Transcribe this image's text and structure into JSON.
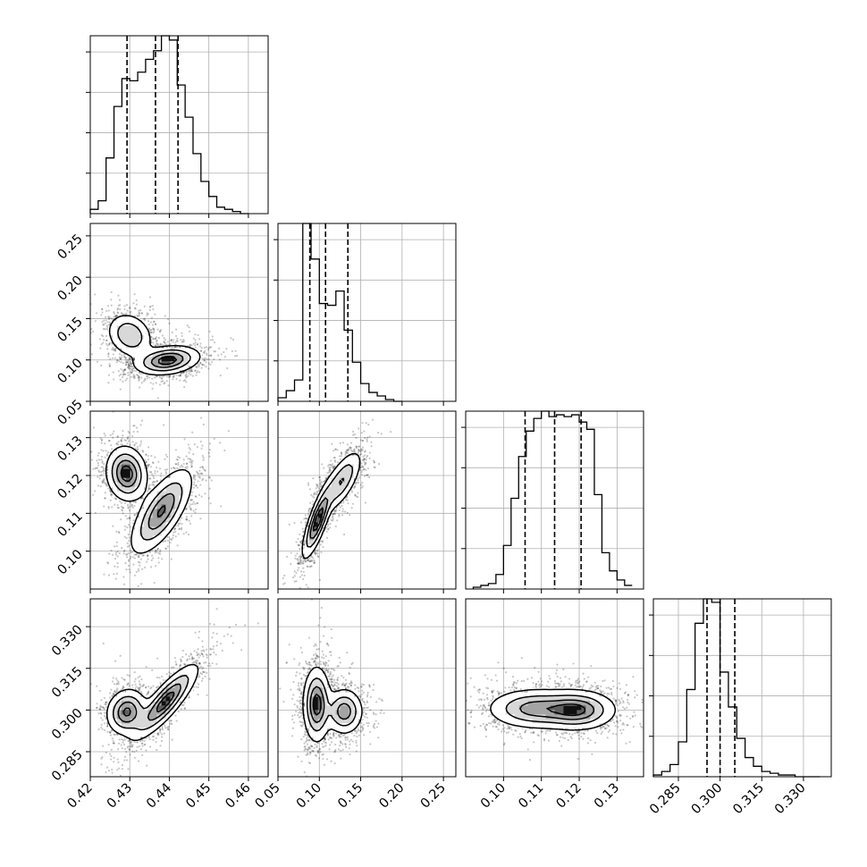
{
  "chart_data": {
    "type": "corner",
    "grid": true,
    "title": "",
    "parameters": [
      {
        "index": 0,
        "xlabel": "",
        "range": [
          0.42,
          0.465
        ],
        "ticks": [
          "0.42",
          "0.43",
          "0.44",
          "0.45",
          "0.46"
        ]
      },
      {
        "index": 1,
        "xlabel": "",
        "range": [
          0.05,
          0.265
        ],
        "ticks": [
          "0.05",
          "0.10",
          "0.15",
          "0.20",
          "0.25"
        ]
      },
      {
        "index": 2,
        "xlabel": "",
        "range": [
          0.09,
          0.137
        ],
        "ticks": [
          "0.10",
          "0.11",
          "0.12",
          "0.13"
        ]
      },
      {
        "index": 3,
        "xlabel": "",
        "range": [
          0.276,
          0.34
        ],
        "ticks": [
          "0.285",
          "0.300",
          "0.315",
          "0.330"
        ]
      }
    ],
    "histograms": [
      {
        "param": 0,
        "bin_edges": [
          0.42,
          0.422,
          0.424,
          0.426,
          0.428,
          0.43,
          0.432,
          0.434,
          0.436,
          0.438,
          0.44,
          0.442,
          0.444,
          0.446,
          0.448,
          0.45,
          0.452,
          0.454,
          0.456,
          0.458,
          0.46
        ],
        "counts": [
          2,
          6,
          26,
          50,
          63,
          62,
          66,
          72,
          76,
          83,
          81,
          60,
          45,
          28,
          15,
          8,
          3,
          2,
          1,
          0
        ],
        "quantiles": [
          0.4293,
          0.4365,
          0.4422
        ]
      },
      {
        "param": 1,
        "bin_edges": [
          0.05,
          0.06,
          0.07,
          0.08,
          0.09,
          0.1,
          0.11,
          0.12,
          0.13,
          0.14,
          0.15,
          0.16,
          0.17,
          0.18,
          0.19,
          0.2
        ],
        "counts": [
          2,
          6,
          12,
          100,
          80,
          55,
          54,
          62,
          40,
          22,
          10,
          5,
          3,
          1,
          0
        ],
        "quantiles": [
          0.0885,
          0.1075,
          0.1345
        ]
      },
      {
        "param": 2,
        "bin_edges": [
          0.092,
          0.094,
          0.096,
          0.098,
          0.1,
          0.102,
          0.104,
          0.106,
          0.108,
          0.11,
          0.112,
          0.114,
          0.116,
          0.118,
          0.12,
          0.122,
          0.124,
          0.126,
          0.128,
          0.13,
          0.132,
          0.134
        ],
        "counts": [
          1,
          2,
          3,
          8,
          24,
          50,
          73,
          87,
          94,
          98,
          95,
          96,
          95,
          96,
          92,
          88,
          52,
          20,
          10,
          5,
          2
        ],
        "quantiles": [
          0.1057,
          0.1135,
          0.1205
        ]
      },
      {
        "param": 3,
        "bin_edges": [
          0.276,
          0.279,
          0.282,
          0.285,
          0.288,
          0.291,
          0.294,
          0.297,
          0.3,
          0.303,
          0.306,
          0.309,
          0.312,
          0.315,
          0.318,
          0.321,
          0.324,
          0.327,
          0.33,
          0.333,
          0.336
        ],
        "counts": [
          1,
          3,
          7,
          20,
          50,
          88,
          102,
          100,
          60,
          40,
          22,
          11,
          6,
          3,
          2,
          1,
          1,
          0,
          0,
          0
        ],
        "quantiles": [
          0.2953,
          0.3,
          0.3053
        ]
      }
    ],
    "pairs": [
      {
        "x": 0,
        "y": 1,
        "modes": [
          {
            "mx": 0.43,
            "my": 0.13,
            "sx": 0.0028,
            "sy": 0.013,
            "rho": -0.2,
            "w": 0.4
          },
          {
            "mx": 0.4395,
            "my": 0.0995,
            "sx": 0.004,
            "sy": 0.0085,
            "rho": 0.25,
            "w": 0.6
          }
        ]
      },
      {
        "x": 0,
        "y": 2,
        "modes": [
          {
            "mx": 0.4292,
            "my": 0.1205,
            "sx": 0.0025,
            "sy": 0.0035,
            "rho": -0.1,
            "w": 0.4
          },
          {
            "mx": 0.438,
            "my": 0.1105,
            "sx": 0.0038,
            "sy": 0.0055,
            "rho": 0.7,
            "w": 0.6
          }
        ]
      },
      {
        "x": 0,
        "y": 3,
        "modes": [
          {
            "mx": 0.4293,
            "my": 0.2993,
            "sx": 0.0025,
            "sy": 0.004,
            "rho": 0.1,
            "w": 0.4
          },
          {
            "mx": 0.439,
            "my": 0.303,
            "sx": 0.004,
            "sy": 0.0065,
            "rho": 0.85,
            "w": 0.6
          }
        ]
      },
      {
        "x": 1,
        "y": 2,
        "modes": [
          {
            "mx": 0.098,
            "my": 0.108,
            "sx": 0.009,
            "sy": 0.0048,
            "rho": 0.8,
            "w": 0.55
          },
          {
            "mx": 0.127,
            "my": 0.1185,
            "sx": 0.012,
            "sy": 0.004,
            "rho": 0.7,
            "w": 0.45
          }
        ]
      },
      {
        "x": 1,
        "y": 3,
        "modes": [
          {
            "mx": 0.097,
            "my": 0.302,
            "sx": 0.008,
            "sy": 0.0065,
            "rho": 0.0,
            "w": 0.6
          },
          {
            "mx": 0.13,
            "my": 0.2995,
            "sx": 0.011,
            "sy": 0.004,
            "rho": 0.0,
            "w": 0.4
          }
        ]
      },
      {
        "x": 2,
        "y": 3,
        "modes": [
          {
            "mx": 0.108,
            "my": 0.3005,
            "sx": 0.006,
            "sy": 0.0035,
            "rho": 0.0,
            "w": 0.5
          },
          {
            "mx": 0.1195,
            "my": 0.3,
            "sx": 0.005,
            "sy": 0.0035,
            "rho": 0.0,
            "w": 0.5
          }
        ]
      }
    ]
  }
}
